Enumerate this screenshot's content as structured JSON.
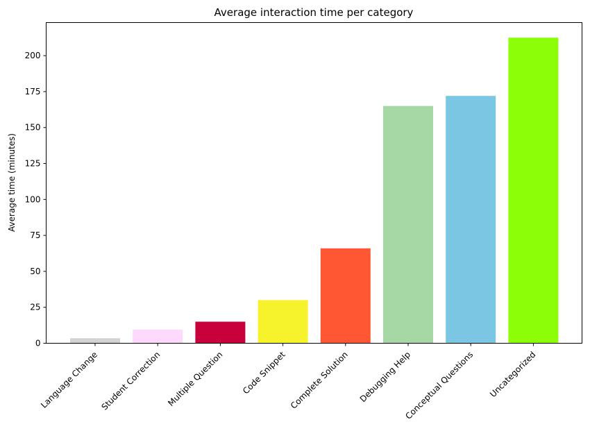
{
  "chart_data": {
    "type": "bar",
    "title": "Average interaction time per category",
    "xlabel": "",
    "ylabel": "Average time (minutes)",
    "categories": [
      "Language Change",
      "Student Correction",
      "Multiple Question",
      "Code Snippet",
      "Complete Solution",
      "Debugging Help",
      "Conceptual Questions",
      "Uncategorized"
    ],
    "values": [
      3.5,
      9.5,
      15,
      30,
      66,
      165,
      172,
      212.5
    ],
    "colors": [
      "#d3d3d3",
      "#ffd9fb",
      "#c8003c",
      "#f6f22b",
      "#ff5733",
      "#a5d8a5",
      "#7bc6e2",
      "#8cff08"
    ],
    "ylim": [
      0,
      223
    ],
    "yticks": [
      0,
      25,
      50,
      75,
      100,
      125,
      150,
      175,
      200
    ],
    "grid": false,
    "legend": "none"
  }
}
